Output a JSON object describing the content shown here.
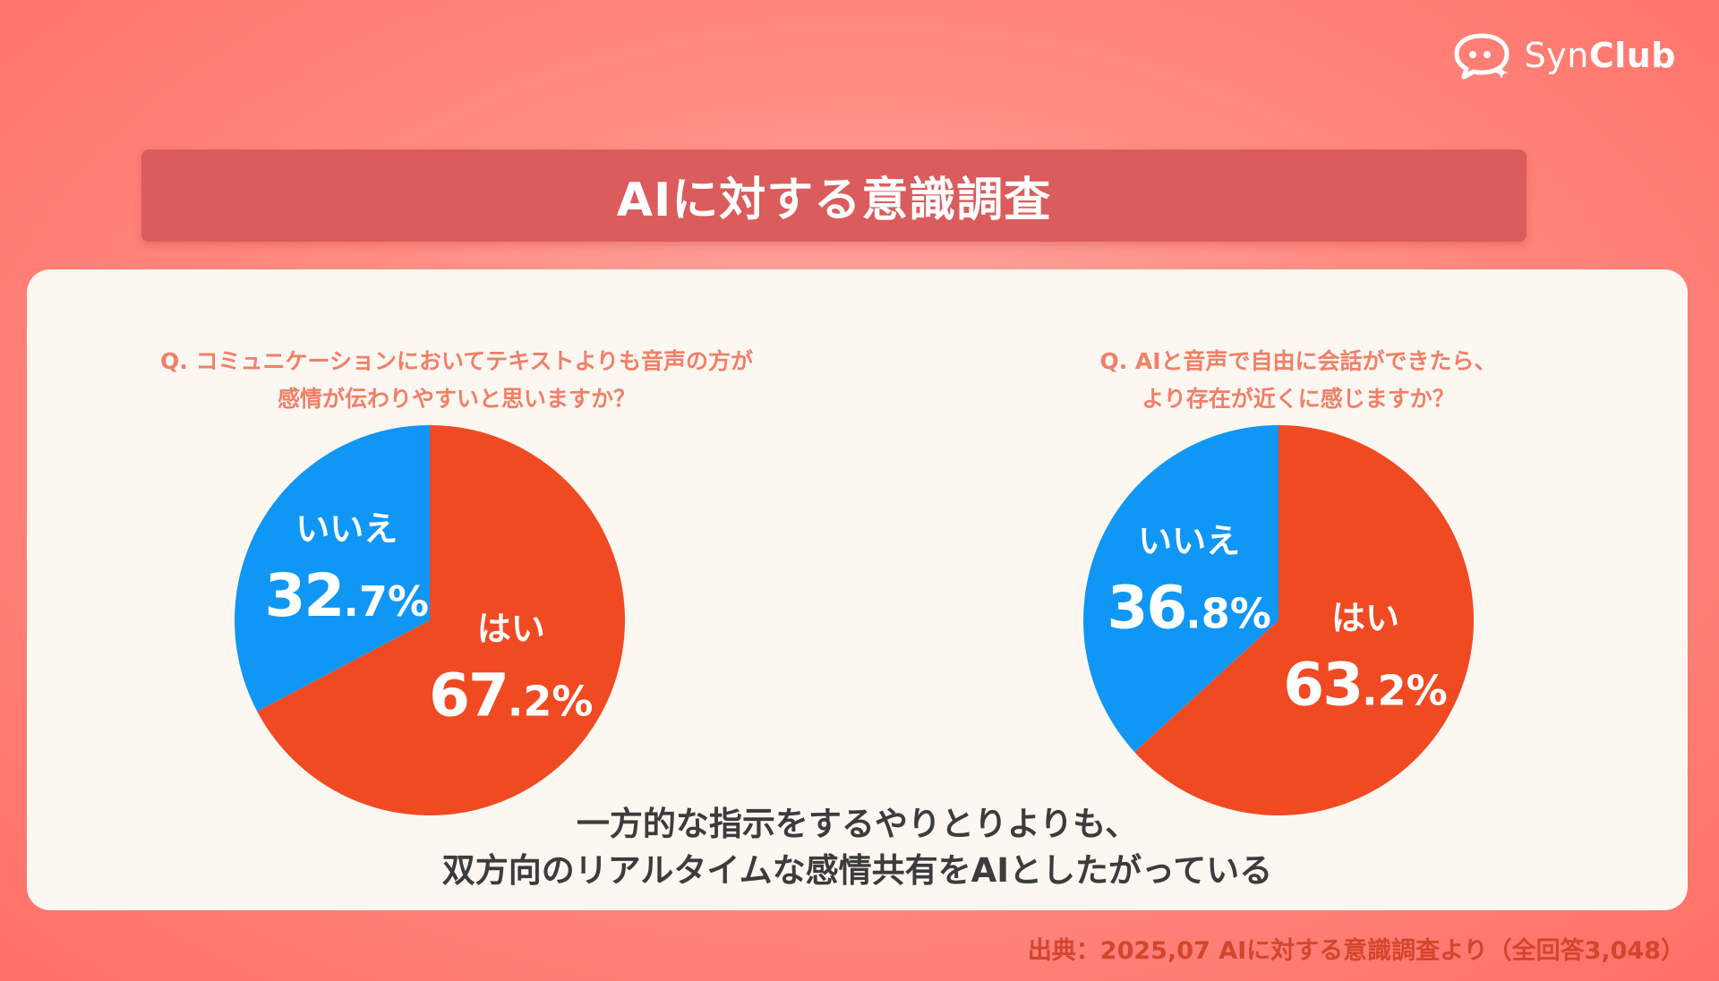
{
  "brand": {
    "name_light": "Syn",
    "name_bold": "Club"
  },
  "title": "AIに対する意識調査",
  "chart_data": [
    {
      "type": "pie",
      "title": "Q. コミュニケーションにおいてテキストよりも音声の方が\n感情が伝わりやすいと思いますか？",
      "title_lines": [
        "Q. コミュニケーションにおいてテキストよりも音声の方が",
        "感情が伝わりやすいと思いますか？"
      ],
      "labels": [
        "はい",
        "いいえ"
      ],
      "values": [
        67.2,
        32.7
      ],
      "display_values": [
        {
          "int": "67",
          "dec": ".2%"
        },
        {
          "int": "32",
          "dec": ".7%"
        }
      ],
      "colors": [
        "#f04a23",
        "#1097f5"
      ],
      "start": "12 o'clock",
      "direction": "clockwise"
    },
    {
      "type": "pie",
      "title": "Q. AIと音声で自由に会話ができたら、\nより存在が近くに感じますか？",
      "title_lines": [
        "Q. AIと音声で自由に会話ができたら、",
        "より存在が近くに感じますか？"
      ],
      "labels": [
        "はい",
        "いいえ"
      ],
      "values": [
        63.2,
        36.8
      ],
      "display_values": [
        {
          "int": "63",
          "dec": ".2%"
        },
        {
          "int": "36",
          "dec": ".8%"
        }
      ],
      "colors": [
        "#f04a23",
        "#1097f5"
      ],
      "start": "12 o'clock",
      "direction": "clockwise"
    }
  ],
  "conclusion": [
    "一方的な指示をするやりとりよりも、",
    "双方向のリアルタイムな感情共有をAIとしたがっている"
  ],
  "source": "出典：2025,07 AIに対する意識調査より（全回答3,048）"
}
